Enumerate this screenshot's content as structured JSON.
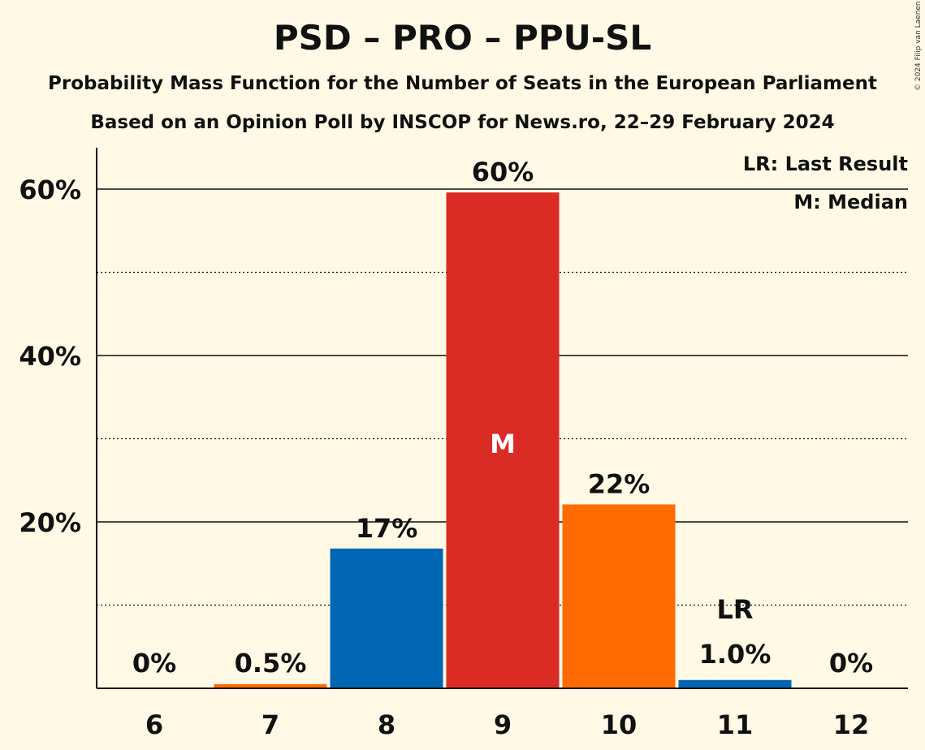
{
  "title": "PSD – PRO – PPU-SL",
  "subtitle": "Probability Mass Function for the Number of Seats in the European Parliament",
  "subtitle2": "Based on an Opinion Poll by INSCOP for News.ro, 22–29 February 2024",
  "copyright": "© 2024 Filip van Laenen",
  "colors": {
    "background": "#FFF9E5",
    "blue": "#0066B3",
    "red": "#DB2B25",
    "orange": "#FF6B00"
  },
  "chart_data": {
    "type": "bar",
    "categories": [
      "6",
      "7",
      "8",
      "9",
      "10",
      "11",
      "12"
    ],
    "values": [
      0,
      0.5,
      16.8,
      59.6,
      22.1,
      1.0,
      0
    ],
    "value_labels": [
      "0%",
      "0.5%",
      "17%",
      "60%",
      "22%",
      "1.0%",
      "0%"
    ],
    "bar_colors": [
      "#0066B3",
      "#FF6B00",
      "#0066B3",
      "#DB2B25",
      "#FF6B00",
      "#0066B3",
      "#0066B3"
    ],
    "ylim": [
      0,
      65
    ],
    "y_ticks": [
      {
        "value": 20,
        "label": "20%"
      },
      {
        "value": 40,
        "label": "40%"
      },
      {
        "value": 60,
        "label": "60%"
      }
    ],
    "minor_gridlines": [
      10,
      30,
      50
    ],
    "median_category": "9",
    "median_marker": "M",
    "last_result_category": "11",
    "last_result_marker": "LR",
    "legend": [
      "LR: Last Result",
      "M: Median"
    ],
    "legend_position": "top-right",
    "grid": true
  }
}
